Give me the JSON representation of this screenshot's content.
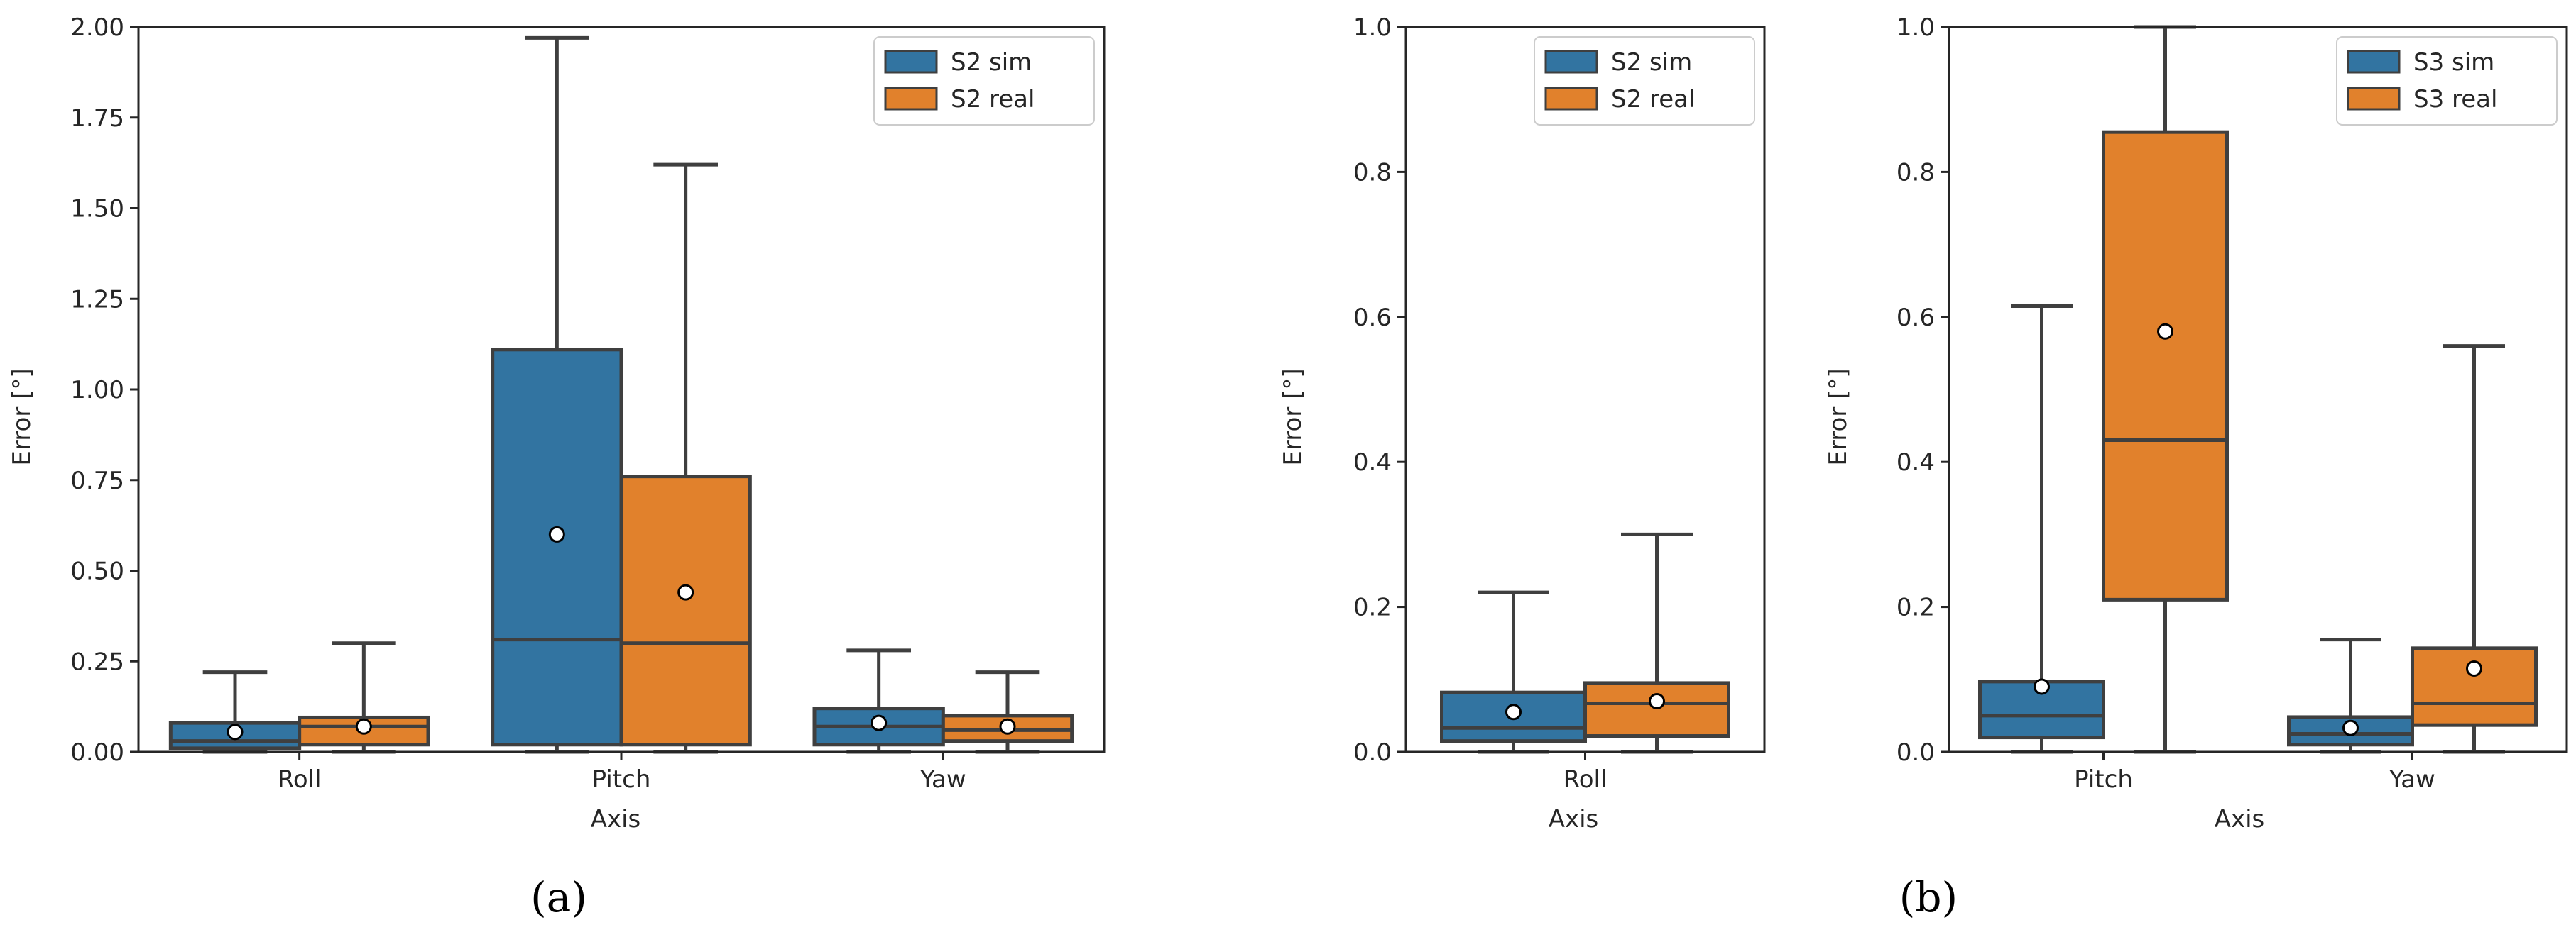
{
  "colors": {
    "sim": "#3274a1",
    "real": "#e1812c",
    "line": "#3f3f3f",
    "axis": "#262626"
  },
  "chart_data": [
    {
      "type": "box",
      "panel_label": "(a)",
      "xlabel": "Axis",
      "ylabel": "Error [°]",
      "ylim": [
        0,
        2.0
      ],
      "yticks": [
        "0.00",
        "0.25",
        "0.50",
        "0.75",
        "1.00",
        "1.25",
        "1.50",
        "1.75",
        "2.00"
      ],
      "categories": [
        "Roll",
        "Pitch",
        "Yaw"
      ],
      "legend": [
        "S2 sim",
        "S2 real"
      ],
      "legend_position": "top-right",
      "series": [
        {
          "name": "S2 sim",
          "boxes": [
            {
              "min": 0.0,
              "q1": 0.01,
              "median": 0.03,
              "q3": 0.08,
              "max": 0.22,
              "mean": 0.055
            },
            {
              "min": 0.0,
              "q1": 0.02,
              "median": 0.31,
              "q3": 1.11,
              "max": 1.97,
              "mean": 0.6
            },
            {
              "min": 0.0,
              "q1": 0.02,
              "median": 0.07,
              "q3": 0.12,
              "max": 0.28,
              "mean": 0.08
            }
          ]
        },
        {
          "name": "S2 real",
          "boxes": [
            {
              "min": 0.0,
              "q1": 0.02,
              "median": 0.07,
              "q3": 0.095,
              "max": 0.3,
              "mean": 0.07
            },
            {
              "min": 0.0,
              "q1": 0.02,
              "median": 0.3,
              "q3": 0.76,
              "max": 1.62,
              "mean": 0.44
            },
            {
              "min": 0.0,
              "q1": 0.03,
              "median": 0.06,
              "q3": 0.1,
              "max": 0.22,
              "mean": 0.07
            }
          ]
        }
      ]
    },
    {
      "type": "box",
      "panel_label": "",
      "xlabel": "Axis",
      "ylabel": "Error [°]",
      "ylim": [
        0,
        1.0
      ],
      "yticks": [
        "0.0",
        "0.2",
        "0.4",
        "0.6",
        "0.8",
        "1.0"
      ],
      "categories": [
        "Roll"
      ],
      "legend": [
        "S2 sim",
        "S2 real"
      ],
      "legend_position": "top-right",
      "series": [
        {
          "name": "S2 sim",
          "boxes": [
            {
              "min": 0.0,
              "q1": 0.015,
              "median": 0.033,
              "q3": 0.082,
              "max": 0.22,
              "mean": 0.055
            }
          ]
        },
        {
          "name": "S2 real",
          "boxes": [
            {
              "min": 0.0,
              "q1": 0.022,
              "median": 0.067,
              "q3": 0.095,
              "max": 0.3,
              "mean": 0.07
            }
          ]
        }
      ]
    },
    {
      "type": "box",
      "panel_label": "(b)",
      "xlabel": "Axis",
      "ylabel": "Error [°]",
      "ylim": [
        0,
        1.0
      ],
      "yticks": [
        "0.0",
        "0.2",
        "0.4",
        "0.6",
        "0.8",
        "1.0"
      ],
      "categories": [
        "Pitch",
        "Yaw"
      ],
      "legend": [
        "S3 sim",
        "S3 real"
      ],
      "legend_position": "top-right",
      "series": [
        {
          "name": "S3 sim",
          "boxes": [
            {
              "min": 0.0,
              "q1": 0.02,
              "median": 0.05,
              "q3": 0.097,
              "max": 0.615,
              "mean": 0.09
            },
            {
              "min": 0.0,
              "q1": 0.01,
              "median": 0.025,
              "q3": 0.048,
              "max": 0.155,
              "mean": 0.033
            }
          ]
        },
        {
          "name": "S3 real",
          "boxes": [
            {
              "min": 0.0,
              "q1": 0.21,
              "median": 0.43,
              "q3": 0.855,
              "max": 1.0,
              "mean": 0.58
            },
            {
              "min": 0.0,
              "q1": 0.037,
              "median": 0.067,
              "q3": 0.143,
              "max": 0.56,
              "mean": 0.115
            }
          ]
        }
      ]
    }
  ]
}
